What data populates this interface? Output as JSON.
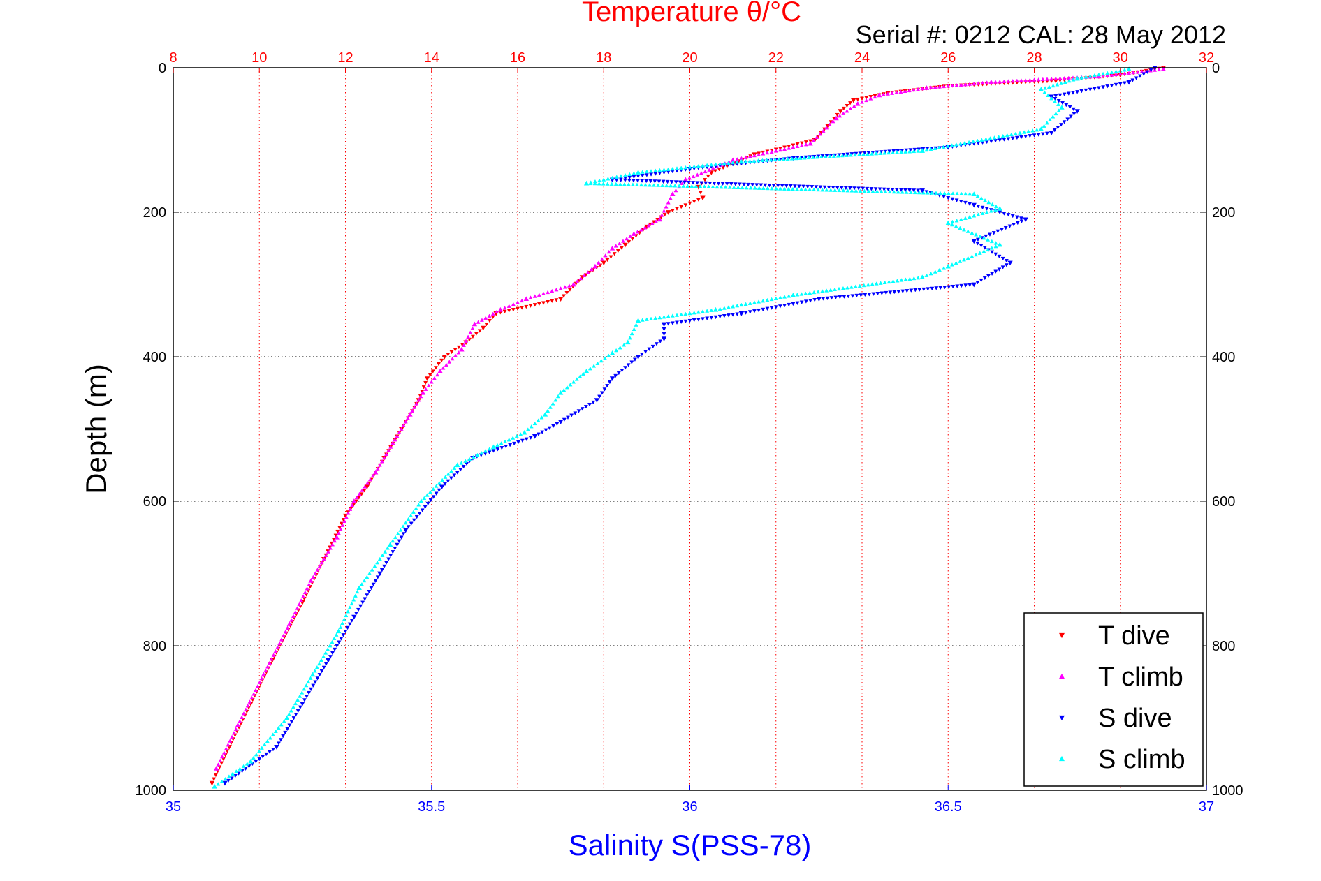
{
  "chart_data": {
    "type": "scatter",
    "title": "Temperature θ/°C",
    "subtitle": "Serial #: 0212  CAL: 28 May 2012",
    "xlabel_bottom": "Salinity S(PSS-78)",
    "xlabel_top": "",
    "ylabel": "Depth (m)",
    "grid": true,
    "legend_position": "lower-right",
    "axes": {
      "depth": {
        "range": [
          0,
          1000
        ],
        "reversed": true,
        "ticks": [
          0,
          200,
          400,
          600,
          800,
          1000
        ],
        "tick_labels": [
          "0",
          "200",
          "400",
          "600",
          "800",
          "1000"
        ]
      },
      "temperature": {
        "range": [
          8,
          32
        ],
        "ticks": [
          8,
          10,
          12,
          14,
          16,
          18,
          20,
          22,
          24,
          26,
          28,
          30,
          32
        ],
        "tick_labels": [
          "8",
          "10",
          "12",
          "14",
          "16",
          "18",
          "20",
          "22",
          "24",
          "26",
          "28",
          "30",
          "32"
        ],
        "color": "#ff0000"
      },
      "salinity": {
        "range": [
          35,
          37
        ],
        "ticks": [
          35,
          35.5,
          36,
          36.5,
          37
        ],
        "tick_labels": [
          "35",
          "35.5",
          "36",
          "36.5",
          "37"
        ],
        "color": "#0000ff"
      }
    },
    "series": [
      {
        "name": "T dive",
        "axis": "temperature",
        "marker": "triangle-down",
        "color": "#ff0000",
        "points": [
          [
            31.0,
            0
          ],
          [
            30.0,
            10
          ],
          [
            28.5,
            18
          ],
          [
            26.0,
            25
          ],
          [
            24.6,
            35
          ],
          [
            23.8,
            45
          ],
          [
            23.5,
            60
          ],
          [
            23.2,
            80
          ],
          [
            22.9,
            100
          ],
          [
            21.5,
            120
          ],
          [
            20.5,
            145
          ],
          [
            20.2,
            165
          ],
          [
            20.3,
            180
          ],
          [
            19.5,
            200
          ],
          [
            19.0,
            220
          ],
          [
            18.5,
            245
          ],
          [
            18.0,
            270
          ],
          [
            17.5,
            290
          ],
          [
            17.0,
            320
          ],
          [
            15.5,
            340
          ],
          [
            15.2,
            360
          ],
          [
            14.8,
            380
          ],
          [
            14.3,
            400
          ],
          [
            13.9,
            430
          ],
          [
            13.7,
            460
          ],
          [
            13.3,
            500
          ],
          [
            12.9,
            540
          ],
          [
            12.5,
            580
          ],
          [
            12.0,
            620
          ],
          [
            11.5,
            680
          ],
          [
            11.0,
            740
          ],
          [
            10.3,
            820
          ],
          [
            9.8,
            880
          ],
          [
            9.3,
            940
          ],
          [
            8.9,
            990
          ]
        ]
      },
      {
        "name": "T climb",
        "axis": "temperature",
        "marker": "triangle-up",
        "color": "#ff00ff",
        "points": [
          [
            31.0,
            2
          ],
          [
            29.5,
            12
          ],
          [
            27.0,
            20
          ],
          [
            25.5,
            28
          ],
          [
            24.4,
            38
          ],
          [
            23.9,
            50
          ],
          [
            23.4,
            70
          ],
          [
            22.8,
            105
          ],
          [
            21.0,
            128
          ],
          [
            19.9,
            155
          ],
          [
            19.6,
            175
          ],
          [
            19.3,
            210
          ],
          [
            18.7,
            230
          ],
          [
            18.2,
            250
          ],
          [
            17.8,
            275
          ],
          [
            17.3,
            300
          ],
          [
            16.2,
            320
          ],
          [
            15.6,
            335
          ],
          [
            15.0,
            355
          ],
          [
            14.7,
            390
          ],
          [
            14.2,
            420
          ],
          [
            13.8,
            450
          ],
          [
            13.5,
            480
          ],
          [
            13.1,
            520
          ],
          [
            12.7,
            560
          ],
          [
            12.2,
            600
          ],
          [
            11.8,
            650
          ],
          [
            11.2,
            710
          ],
          [
            10.7,
            770
          ],
          [
            10.1,
            840
          ],
          [
            9.5,
            910
          ],
          [
            9.0,
            970
          ]
        ]
      },
      {
        "name": "S dive",
        "axis": "salinity",
        "marker": "triangle-down",
        "color": "#0000ff",
        "points": [
          [
            36.9,
            0
          ],
          [
            36.85,
            20
          ],
          [
            36.7,
            40
          ],
          [
            36.75,
            60
          ],
          [
            36.7,
            90
          ],
          [
            36.5,
            110
          ],
          [
            36.2,
            125
          ],
          [
            36.0,
            140
          ],
          [
            35.85,
            155
          ],
          [
            36.45,
            170
          ],
          [
            36.55,
            190
          ],
          [
            36.65,
            210
          ],
          [
            36.55,
            240
          ],
          [
            36.62,
            270
          ],
          [
            36.55,
            300
          ],
          [
            36.25,
            320
          ],
          [
            36.1,
            340
          ],
          [
            35.95,
            355
          ],
          [
            35.95,
            375
          ],
          [
            35.9,
            400
          ],
          [
            35.85,
            430
          ],
          [
            35.82,
            460
          ],
          [
            35.75,
            490
          ],
          [
            35.7,
            510
          ],
          [
            35.58,
            540
          ],
          [
            35.52,
            580
          ],
          [
            35.45,
            640
          ],
          [
            35.4,
            700
          ],
          [
            35.35,
            760
          ],
          [
            35.3,
            820
          ],
          [
            35.25,
            880
          ],
          [
            35.2,
            940
          ],
          [
            35.1,
            990
          ]
        ]
      },
      {
        "name": "S climb",
        "axis": "salinity",
        "marker": "triangle-up",
        "color": "#00ffff",
        "points": [
          [
            36.85,
            2
          ],
          [
            36.75,
            15
          ],
          [
            36.68,
            30
          ],
          [
            36.72,
            55
          ],
          [
            36.68,
            85
          ],
          [
            36.45,
            115
          ],
          [
            36.1,
            130
          ],
          [
            35.9,
            145
          ],
          [
            35.8,
            160
          ],
          [
            36.55,
            175
          ],
          [
            36.6,
            195
          ],
          [
            36.5,
            215
          ],
          [
            36.6,
            245
          ],
          [
            36.5,
            275
          ],
          [
            36.45,
            290
          ],
          [
            36.2,
            315
          ],
          [
            36.05,
            335
          ],
          [
            35.9,
            350
          ],
          [
            35.88,
            380
          ],
          [
            35.85,
            395
          ],
          [
            35.8,
            420
          ],
          [
            35.75,
            450
          ],
          [
            35.72,
            480
          ],
          [
            35.68,
            505
          ],
          [
            35.62,
            525
          ],
          [
            35.55,
            550
          ],
          [
            35.48,
            600
          ],
          [
            35.42,
            660
          ],
          [
            35.36,
            720
          ],
          [
            35.32,
            780
          ],
          [
            35.27,
            840
          ],
          [
            35.22,
            900
          ],
          [
            35.15,
            960
          ],
          [
            35.08,
            995
          ]
        ]
      }
    ]
  },
  "legend": {
    "items": [
      {
        "label": "T dive",
        "marker": "triangle-down",
        "color": "#ff0000"
      },
      {
        "label": "T climb",
        "marker": "triangle-up",
        "color": "#ff00ff"
      },
      {
        "label": "S dive",
        "marker": "triangle-down",
        "color": "#0000ff"
      },
      {
        "label": "S climb",
        "marker": "triangle-up",
        "color": "#00ffff"
      }
    ]
  }
}
